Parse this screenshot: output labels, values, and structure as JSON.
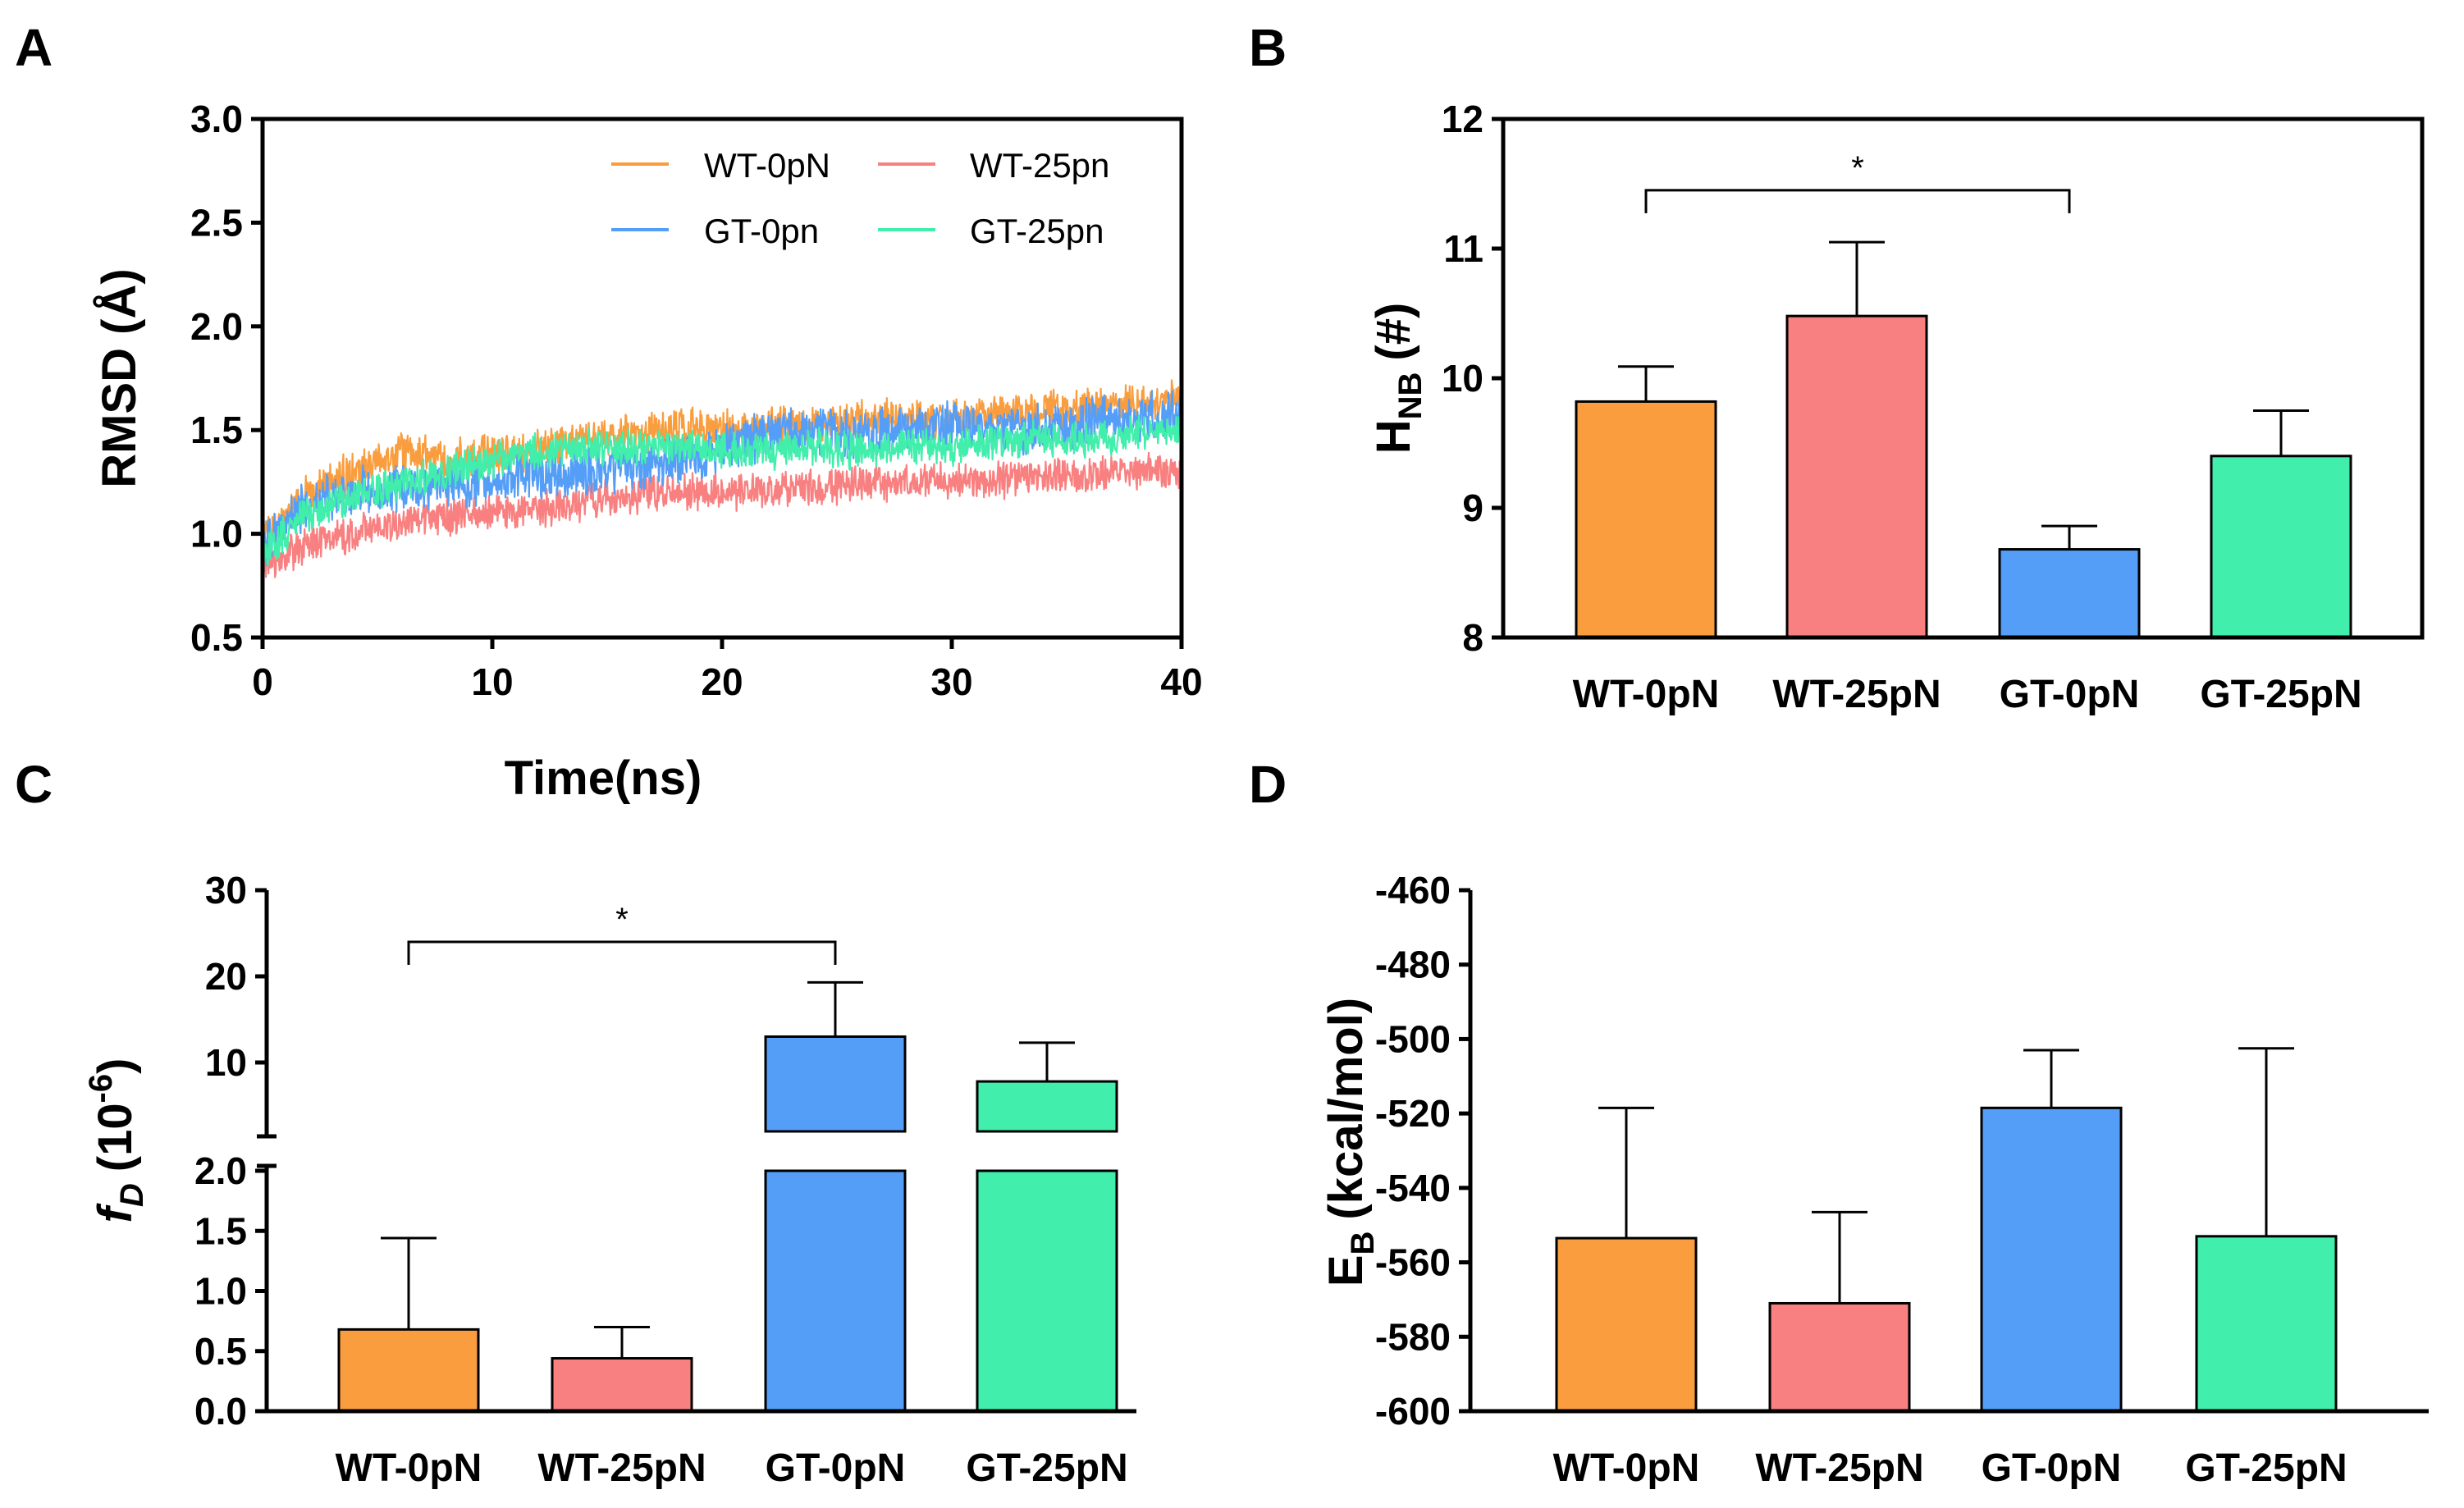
{
  "colors": {
    "wt0": "#f99d3e",
    "wt25": "#f98080",
    "gt0": "#559ef8",
    "gt25": "#41eeab",
    "axis": "#000000"
  },
  "chart_data": [
    {
      "panel": "A",
      "type": "line",
      "xlabel": "Time(ns)",
      "ylabel": "RMSD (Å)",
      "xlim": [
        0,
        40
      ],
      "ylim": [
        0.5,
        3.0
      ],
      "xticks": [
        "0",
        "10",
        "20",
        "30",
        "40"
      ],
      "yticks": [
        "0.5",
        "1.0",
        "1.5",
        "2.0",
        "2.5",
        "3.0"
      ],
      "legend_position": "top-right",
      "series": [
        {
          "name": "WT-0pN",
          "color": "#f99d3e",
          "x": [
            0,
            2,
            4,
            6,
            8,
            10,
            12,
            14,
            16,
            18,
            20,
            22,
            24,
            26,
            28,
            30,
            32,
            34,
            36,
            38,
            40
          ],
          "values": [
            0.95,
            1.2,
            1.3,
            1.4,
            1.35,
            1.38,
            1.4,
            1.45,
            1.48,
            1.5,
            1.5,
            1.52,
            1.52,
            1.55,
            1.55,
            1.55,
            1.58,
            1.6,
            1.6,
            1.62,
            1.65
          ]
        },
        {
          "name": "WT-25pn",
          "color": "#f98080",
          "x": [
            0,
            2,
            4,
            6,
            8,
            10,
            12,
            14,
            16,
            18,
            20,
            22,
            24,
            26,
            28,
            30,
            32,
            34,
            36,
            38,
            40
          ],
          "values": [
            0.85,
            0.95,
            1.0,
            1.05,
            1.08,
            1.1,
            1.12,
            1.15,
            1.18,
            1.2,
            1.2,
            1.22,
            1.22,
            1.24,
            1.25,
            1.25,
            1.26,
            1.28,
            1.28,
            1.3,
            1.3
          ]
        },
        {
          "name": "GT-0pn",
          "color": "#559ef8",
          "x": [
            0,
            2,
            4,
            6,
            8,
            10,
            12,
            14,
            16,
            18,
            20,
            22,
            24,
            26,
            28,
            30,
            32,
            34,
            36,
            38,
            40
          ],
          "values": [
            0.95,
            1.15,
            1.2,
            1.22,
            1.25,
            1.25,
            1.28,
            1.3,
            1.32,
            1.35,
            1.4,
            1.48,
            1.5,
            1.48,
            1.5,
            1.52,
            1.5,
            1.5,
            1.55,
            1.55,
            1.6
          ]
        },
        {
          "name": "GT-25pn",
          "color": "#41eeab",
          "x": [
            0,
            2,
            4,
            6,
            8,
            10,
            12,
            14,
            16,
            18,
            20,
            22,
            24,
            26,
            28,
            30,
            32,
            34,
            36,
            38,
            40
          ],
          "values": [
            0.9,
            1.1,
            1.18,
            1.25,
            1.3,
            1.35,
            1.4,
            1.42,
            1.42,
            1.42,
            1.4,
            1.4,
            1.42,
            1.4,
            1.42,
            1.42,
            1.45,
            1.45,
            1.45,
            1.48,
            1.5
          ]
        }
      ]
    },
    {
      "panel": "B",
      "type": "bar",
      "categories": [
        "WT-0pN",
        "WT-25pN",
        "GT-0pN",
        "GT-25pN"
      ],
      "values": [
        9.82,
        10.48,
        8.68,
        9.4
      ],
      "errors": [
        0.27,
        0.57,
        0.18,
        0.35
      ],
      "colors": [
        "#f99d3e",
        "#f98080",
        "#559ef8",
        "#41eeab"
      ],
      "ylabel_main": "H",
      "ylabel_sub": "NB",
      "ylabel_rest": "(#)",
      "ylim": [
        8,
        12
      ],
      "yticks": [
        "8",
        "9",
        "10",
        "11",
        "12"
      ],
      "significance": {
        "from": 0,
        "to": 2,
        "y": 11.45,
        "label": "*"
      }
    },
    {
      "panel": "C",
      "type": "bar",
      "categories": [
        "WT-0pN",
        "WT-25pN",
        "GT-0pN",
        "GT-25pN"
      ],
      "values": [
        0.68,
        0.44,
        13.0,
        7.8
      ],
      "errors": [
        0.76,
        0.26,
        6.3,
        4.5
      ],
      "colors": [
        "#f99d3e",
        "#f98080",
        "#559ef8",
        "#41eeab"
      ],
      "ylabel_italic": "f",
      "ylabel_sub": "D",
      "ylabel_rest": "(10",
      "ylabel_sup": "-6",
      "ylabel_close": ")",
      "axis_break": true,
      "lower_range": [
        0,
        2.0
      ],
      "upper_range": [
        2.0,
        30
      ],
      "lower_ticks": [
        "0.0",
        "0.5",
        "1.0",
        "1.5",
        "2.0"
      ],
      "upper_ticks": [
        "10",
        "20",
        "30"
      ],
      "significance": {
        "from": 0,
        "to": 2,
        "y": 24,
        "label": "*"
      }
    },
    {
      "panel": "D",
      "type": "bar",
      "categories": [
        "WT-0pN",
        "WT-25pN",
        "GT-0pN",
        "GT-25pN"
      ],
      "values": [
        -553.5,
        -571,
        -518.5,
        -553
      ],
      "errors": [
        35,
        24.5,
        15.5,
        50.5
      ],
      "colors": [
        "#f99d3e",
        "#f98080",
        "#559ef8",
        "#41eeab"
      ],
      "ylabel_main": "E",
      "ylabel_sub": "B",
      "ylabel_rest": "(kcal/mol)",
      "ylim": [
        -600,
        -460
      ],
      "yticks": [
        "-600",
        "-580",
        "-560",
        "-540",
        "-520",
        "-500",
        "-480",
        "-460"
      ]
    }
  ],
  "panel_labels": [
    "A",
    "B",
    "C",
    "D"
  ],
  "legendA": [
    "WT-0pN",
    "WT-25pn",
    "GT-0pn",
    "GT-25pn"
  ]
}
